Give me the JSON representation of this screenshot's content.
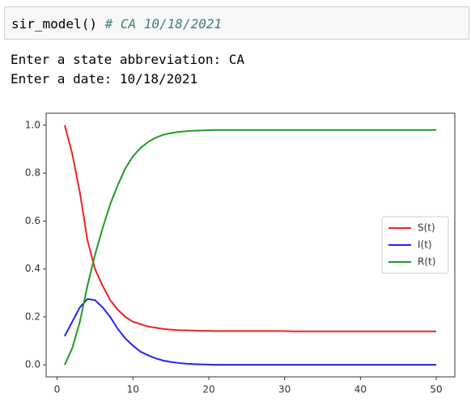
{
  "cell": {
    "code": "sir_model()",
    "comment": "# CA 10/18/2021"
  },
  "output": [
    "Enter a state abbreviation: CA",
    "Enter a date: 10/18/2021"
  ],
  "chart_data": {
    "type": "line",
    "x": [
      1,
      2,
      3,
      4,
      5,
      6,
      7,
      8,
      9,
      10,
      11,
      12,
      13,
      14,
      15,
      16,
      17,
      18,
      19,
      20,
      21,
      22,
      23,
      24,
      25,
      26,
      27,
      28,
      29,
      30,
      31,
      32,
      33,
      34,
      35,
      36,
      37,
      38,
      39,
      40,
      41,
      42,
      43,
      44,
      45,
      46,
      47,
      48,
      49,
      50
    ],
    "series": [
      {
        "name": "S(t)",
        "color": "#ee2222",
        "values": [
          1.0,
          0.88,
          0.72,
          0.52,
          0.4,
          0.33,
          0.27,
          0.23,
          0.2,
          0.18,
          0.17,
          0.16,
          0.155,
          0.15,
          0.147,
          0.145,
          0.144,
          0.143,
          0.142,
          0.142,
          0.141,
          0.141,
          0.141,
          0.141,
          0.141,
          0.141,
          0.141,
          0.141,
          0.141,
          0.141,
          0.14,
          0.14,
          0.14,
          0.14,
          0.14,
          0.14,
          0.14,
          0.14,
          0.14,
          0.14,
          0.14,
          0.14,
          0.14,
          0.14,
          0.14,
          0.14,
          0.14,
          0.14,
          0.14,
          0.14
        ]
      },
      {
        "name": "I(t)",
        "color": "#2222ee",
        "values": [
          0.12,
          0.18,
          0.24,
          0.275,
          0.27,
          0.24,
          0.2,
          0.15,
          0.11,
          0.08,
          0.055,
          0.04,
          0.027,
          0.018,
          0.012,
          0.008,
          0.005,
          0.003,
          0.002,
          0.001,
          0,
          0,
          0,
          0,
          0,
          0,
          0,
          0,
          0,
          0,
          0,
          0,
          0,
          0,
          0,
          0,
          0,
          0,
          0,
          0,
          0,
          0,
          0,
          0,
          0,
          0,
          0,
          0,
          0,
          0
        ]
      },
      {
        "name": "R(t)",
        "color": "#229922",
        "values": [
          0,
          0.07,
          0.18,
          0.33,
          0.46,
          0.57,
          0.67,
          0.75,
          0.82,
          0.87,
          0.905,
          0.93,
          0.948,
          0.96,
          0.967,
          0.972,
          0.975,
          0.977,
          0.978,
          0.979,
          0.98,
          0.98,
          0.98,
          0.98,
          0.98,
          0.98,
          0.98,
          0.98,
          0.98,
          0.98,
          0.98,
          0.98,
          0.98,
          0.98,
          0.98,
          0.98,
          0.98,
          0.98,
          0.98,
          0.98,
          0.98,
          0.98,
          0.98,
          0.98,
          0.98,
          0.98,
          0.98,
          0.98,
          0.98,
          0.98
        ]
      }
    ],
    "xlim": [
      -1.45,
      52.45
    ],
    "ylim": [
      -0.05,
      1.05
    ],
    "xticks": [
      0,
      10,
      20,
      30,
      40,
      50
    ],
    "yticks": [
      {
        "value": 0,
        "label": "0.0"
      },
      0.2,
      0.4,
      0.6,
      0.8,
      {
        "value": 1,
        "label": "1.0"
      }
    ],
    "legend": "center right"
  }
}
